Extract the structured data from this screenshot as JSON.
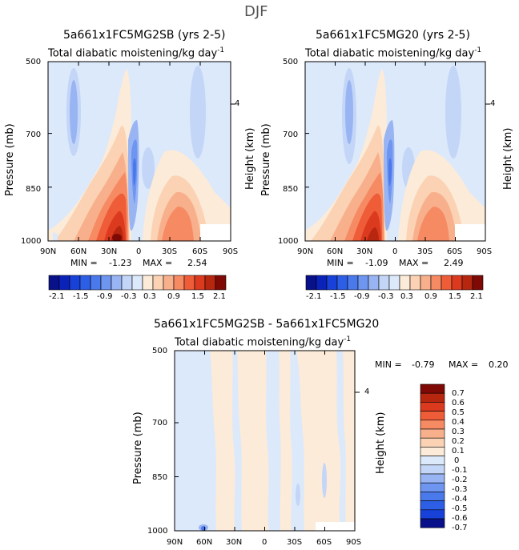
{
  "suptitle": "DJF",
  "colors": {
    "levels": [
      -2.1,
      -1.8,
      -1.5,
      -1.2,
      -0.9,
      -0.6,
      -0.3,
      0,
      0.3,
      0.6,
      0.9,
      1.2,
      1.5,
      1.8,
      2.1
    ],
    "palette": [
      "#08108a",
      "#0a22b8",
      "#1741d8",
      "#2d5ee6",
      "#4a79ec",
      "#6e95f0",
      "#98b4f3",
      "#c4d6f7",
      "#dce9fb",
      "#fcebd8",
      "#fbd2b3",
      "#f8b08c",
      "#f68a63",
      "#ef5c38",
      "#db3a1f",
      "#b7260f",
      "#7f0a05"
    ]
  },
  "chart_data": [
    {
      "type": "heatmap",
      "title": "5a661x1FC5MG2SB (yrs 2-5)",
      "subtitle": "Total diabatic moistening/kg day",
      "subtitle_exp": "-1",
      "ylabel": "Pressure (mb)",
      "y2label": "Height (km)",
      "y2ticks": [
        "4"
      ],
      "xticks": [
        "90N",
        "60N",
        "30N",
        "0",
        "30S",
        "60S",
        "90S"
      ],
      "yticks": [
        "500",
        "700",
        "850",
        "1000"
      ],
      "min_label": "MIN =",
      "min": "-1.23",
      "max_label": "MAX =",
      "max": "2.54",
      "colorbar_labels": [
        "-2.1",
        "-1.5",
        "-0.9",
        "-0.3",
        "0.3",
        "0.9",
        "1.5",
        "2.1"
      ]
    },
    {
      "type": "heatmap",
      "title": "5a661x1FC5MG20 (yrs 2-5)",
      "subtitle": "Total diabatic moistening/kg day",
      "subtitle_exp": "-1",
      "ylabel": "Pressure (mb)",
      "y2label": "Height (km)",
      "y2ticks": [
        "4"
      ],
      "xticks": [
        "90N",
        "60N",
        "30N",
        "0",
        "30S",
        "60S",
        "90S"
      ],
      "yticks": [
        "500",
        "700",
        "850",
        "1000"
      ],
      "min_label": "MIN =",
      "min": "-1.09",
      "max_label": "MAX =",
      "max": "2.49",
      "colorbar_labels": [
        "-2.1",
        "-1.5",
        "-0.9",
        "-0.3",
        "0.3",
        "0.9",
        "1.5",
        "2.1"
      ]
    },
    {
      "type": "heatmap",
      "title": "5a661x1FC5MG2SB - 5a661x1FC5MG20",
      "subtitle": "Total diabatic moistening/kg day",
      "subtitle_exp": "-1",
      "ylabel": "Pressure (mb)",
      "y2label": "Height (km)",
      "y2ticks": [
        "4"
      ],
      "xticks": [
        "90N",
        "60N",
        "30N",
        "0",
        "30S",
        "60S",
        "90S"
      ],
      "yticks": [
        "500",
        "700",
        "850",
        "1000"
      ],
      "min_label": "MIN =",
      "min": "-0.79",
      "max_label": "MAX =",
      "max": "0.20",
      "colorbar_labels": [
        "0.7",
        "0.6",
        "0.5",
        "0.4",
        "0.3",
        "0.2",
        "0.1",
        "0",
        "-0.1",
        "-0.2",
        "-0.3",
        "-0.4",
        "-0.5",
        "-0.6",
        "-0.7"
      ]
    }
  ]
}
